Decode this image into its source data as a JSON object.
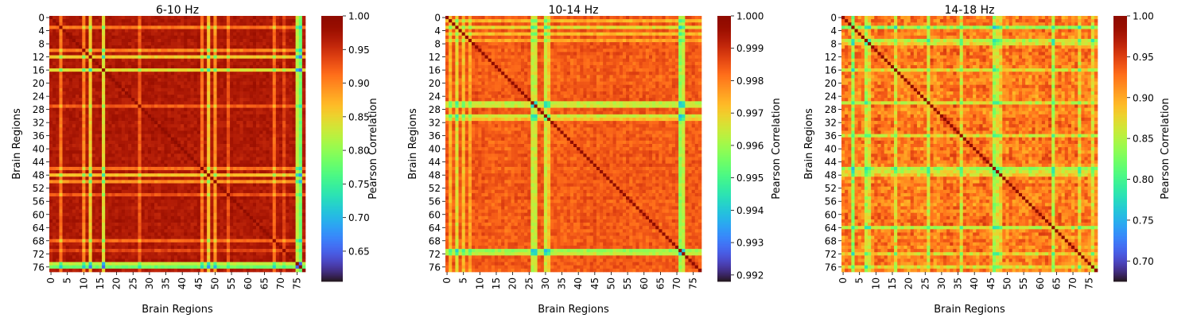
{
  "figure": {
    "panel_count": 3,
    "tick_color": "#000000"
  },
  "chart_data": [
    {
      "type": "heatmap",
      "title": "6-10 Hz",
      "xlabel": "Brain Regions",
      "ylabel": "Brain Regions",
      "matrix_size": 78,
      "x_tick_labels": [
        "0",
        "5",
        "10",
        "15",
        "20",
        "25",
        "30",
        "35",
        "40",
        "45",
        "50",
        "55",
        "60",
        "65",
        "70",
        "75"
      ],
      "y_tick_labels": [
        "0",
        "4",
        "8",
        "12",
        "16",
        "20",
        "24",
        "28",
        "32",
        "36",
        "40",
        "44",
        "48",
        "52",
        "56",
        "60",
        "64",
        "68",
        "72",
        "76"
      ],
      "colorbar": {
        "label": "Pearson Correlation",
        "range": [
          0.605,
          1.0
        ],
        "tick_labels": [
          "0.65",
          "0.70",
          "0.75",
          "0.80",
          "0.85",
          "0.90",
          "0.95",
          "1.00"
        ]
      },
      "colormap": "turbo",
      "grid": false
    },
    {
      "type": "heatmap",
      "title": "10-14 Hz",
      "xlabel": "Brain Regions",
      "ylabel": "Brain Regions",
      "matrix_size": 78,
      "x_tick_labels": [
        "0",
        "5",
        "10",
        "15",
        "20",
        "25",
        "30",
        "35",
        "40",
        "45",
        "50",
        "55",
        "60",
        "65",
        "70",
        "75"
      ],
      "y_tick_labels": [
        "0",
        "4",
        "8",
        "12",
        "16",
        "20",
        "24",
        "28",
        "32",
        "36",
        "40",
        "44",
        "48",
        "52",
        "56",
        "60",
        "64",
        "68",
        "72",
        "76"
      ],
      "colorbar": {
        "label": "Pearson Correlation",
        "range": [
          0.9918,
          1.0
        ],
        "tick_labels": [
          "0.992",
          "0.993",
          "0.994",
          "0.995",
          "0.996",
          "0.997",
          "0.998",
          "0.999",
          "1.000"
        ]
      },
      "colormap": "turbo",
      "grid": false
    },
    {
      "type": "heatmap",
      "title": "14-18 Hz",
      "xlabel": "Brain Regions",
      "ylabel": "Brain Regions",
      "matrix_size": 78,
      "x_tick_labels": [
        "0",
        "5",
        "10",
        "15",
        "20",
        "25",
        "30",
        "35",
        "40",
        "45",
        "50",
        "55",
        "60",
        "65",
        "70",
        "75"
      ],
      "y_tick_labels": [
        "0",
        "4",
        "8",
        "12",
        "16",
        "20",
        "24",
        "28",
        "32",
        "36",
        "40",
        "44",
        "48",
        "52",
        "56",
        "60",
        "64",
        "68",
        "72",
        "76"
      ],
      "colorbar": {
        "label": "Pearson Correlation",
        "range": [
          0.675,
          1.0
        ],
        "tick_labels": [
          "0.70",
          "0.75",
          "0.80",
          "0.85",
          "0.90",
          "0.95",
          "1.00"
        ]
      },
      "colormap": "turbo",
      "grid": false
    }
  ]
}
